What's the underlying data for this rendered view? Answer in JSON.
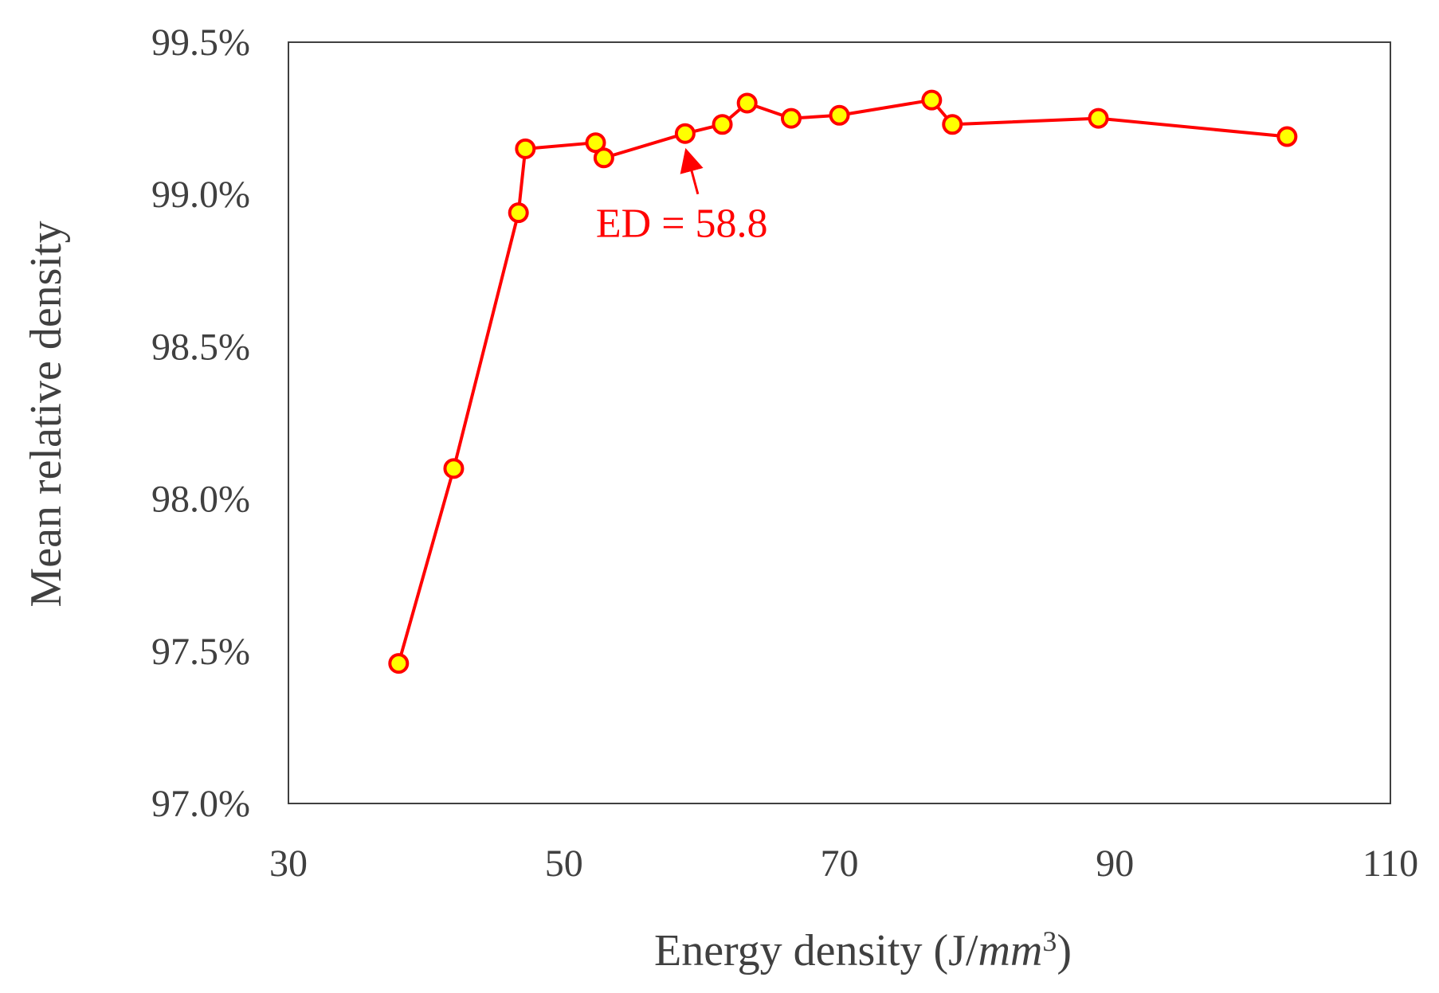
{
  "chart_data": {
    "type": "line",
    "title": "",
    "xlabel": "Energy density (J/",
    "xlabel_math_unit": "mm",
    "xlabel_exponent": "3",
    "xlabel_close": ")",
    "ylabel": "Mean relative density",
    "xlim": [
      30,
      110
    ],
    "ylim": [
      97.0,
      99.5
    ],
    "x_ticks": [
      30,
      50,
      70,
      90,
      110
    ],
    "y_ticks": [
      97.0,
      97.5,
      98.0,
      98.5,
      99.0,
      99.5
    ],
    "x_tick_labels": [
      "30",
      "50",
      "70",
      "90",
      "110"
    ],
    "y_tick_labels": [
      "97.0%",
      "97.5%",
      "98.0%",
      "98.5%",
      "99.0%",
      "99.5%"
    ],
    "grid": false,
    "series": [
      {
        "name": "Mean relative density",
        "x": [
          38.0,
          42.0,
          46.7,
          47.2,
          52.3,
          52.9,
          58.8,
          61.5,
          63.3,
          66.5,
          70.0,
          76.7,
          78.2,
          88.8,
          102.5
        ],
        "y": [
          97.46,
          98.1,
          98.94,
          99.15,
          99.17,
          99.12,
          99.2,
          99.23,
          99.3,
          99.25,
          99.26,
          99.31,
          99.23,
          99.25,
          99.19
        ],
        "line_color": "#ff0000",
        "marker_fill": "#ffff00",
        "marker_edge": "#ff0000"
      }
    ],
    "annotations": [
      {
        "text": "ED = 58.8",
        "target_x": 58.8,
        "target_y": 99.2,
        "color": "#ff0000"
      }
    ]
  }
}
